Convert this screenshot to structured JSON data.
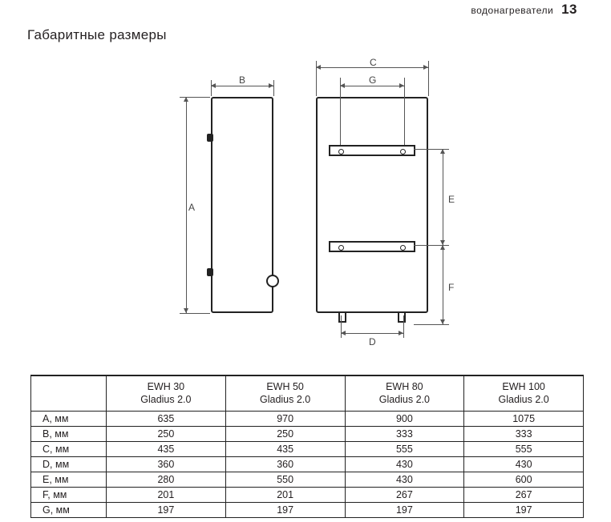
{
  "header": {
    "category": "водонагреватели",
    "page_number": "13"
  },
  "title": "Габаритные размеры",
  "diagram": {
    "labels": {
      "A": "A",
      "B": "B",
      "C": "C",
      "D": "D",
      "E": "E",
      "F": "F",
      "G": "G"
    }
  },
  "table": {
    "columns": [
      {
        "line1": "EWH 30",
        "line2": "Gladius 2.0"
      },
      {
        "line1": "EWH 50",
        "line2": "Gladius 2.0"
      },
      {
        "line1": "EWH 80",
        "line2": "Gladius 2.0"
      },
      {
        "line1": "EWH 100",
        "line2": "Gladius 2.0"
      }
    ],
    "rows": [
      {
        "label": "A, мм",
        "values": [
          "635",
          "970",
          "900",
          "1075"
        ]
      },
      {
        "label": "B, мм",
        "values": [
          "250",
          "250",
          "333",
          "333"
        ]
      },
      {
        "label": "C, мм",
        "values": [
          "435",
          "435",
          "555",
          "555"
        ]
      },
      {
        "label": "D, мм",
        "values": [
          "360",
          "360",
          "430",
          "430"
        ]
      },
      {
        "label": "E, мм",
        "values": [
          "280",
          "550",
          "430",
          "600"
        ]
      },
      {
        "label": "F, мм",
        "values": [
          "201",
          "201",
          "267",
          "267"
        ]
      },
      {
        "label": "G, мм",
        "values": [
          "197",
          "197",
          "197",
          "197"
        ]
      }
    ]
  }
}
